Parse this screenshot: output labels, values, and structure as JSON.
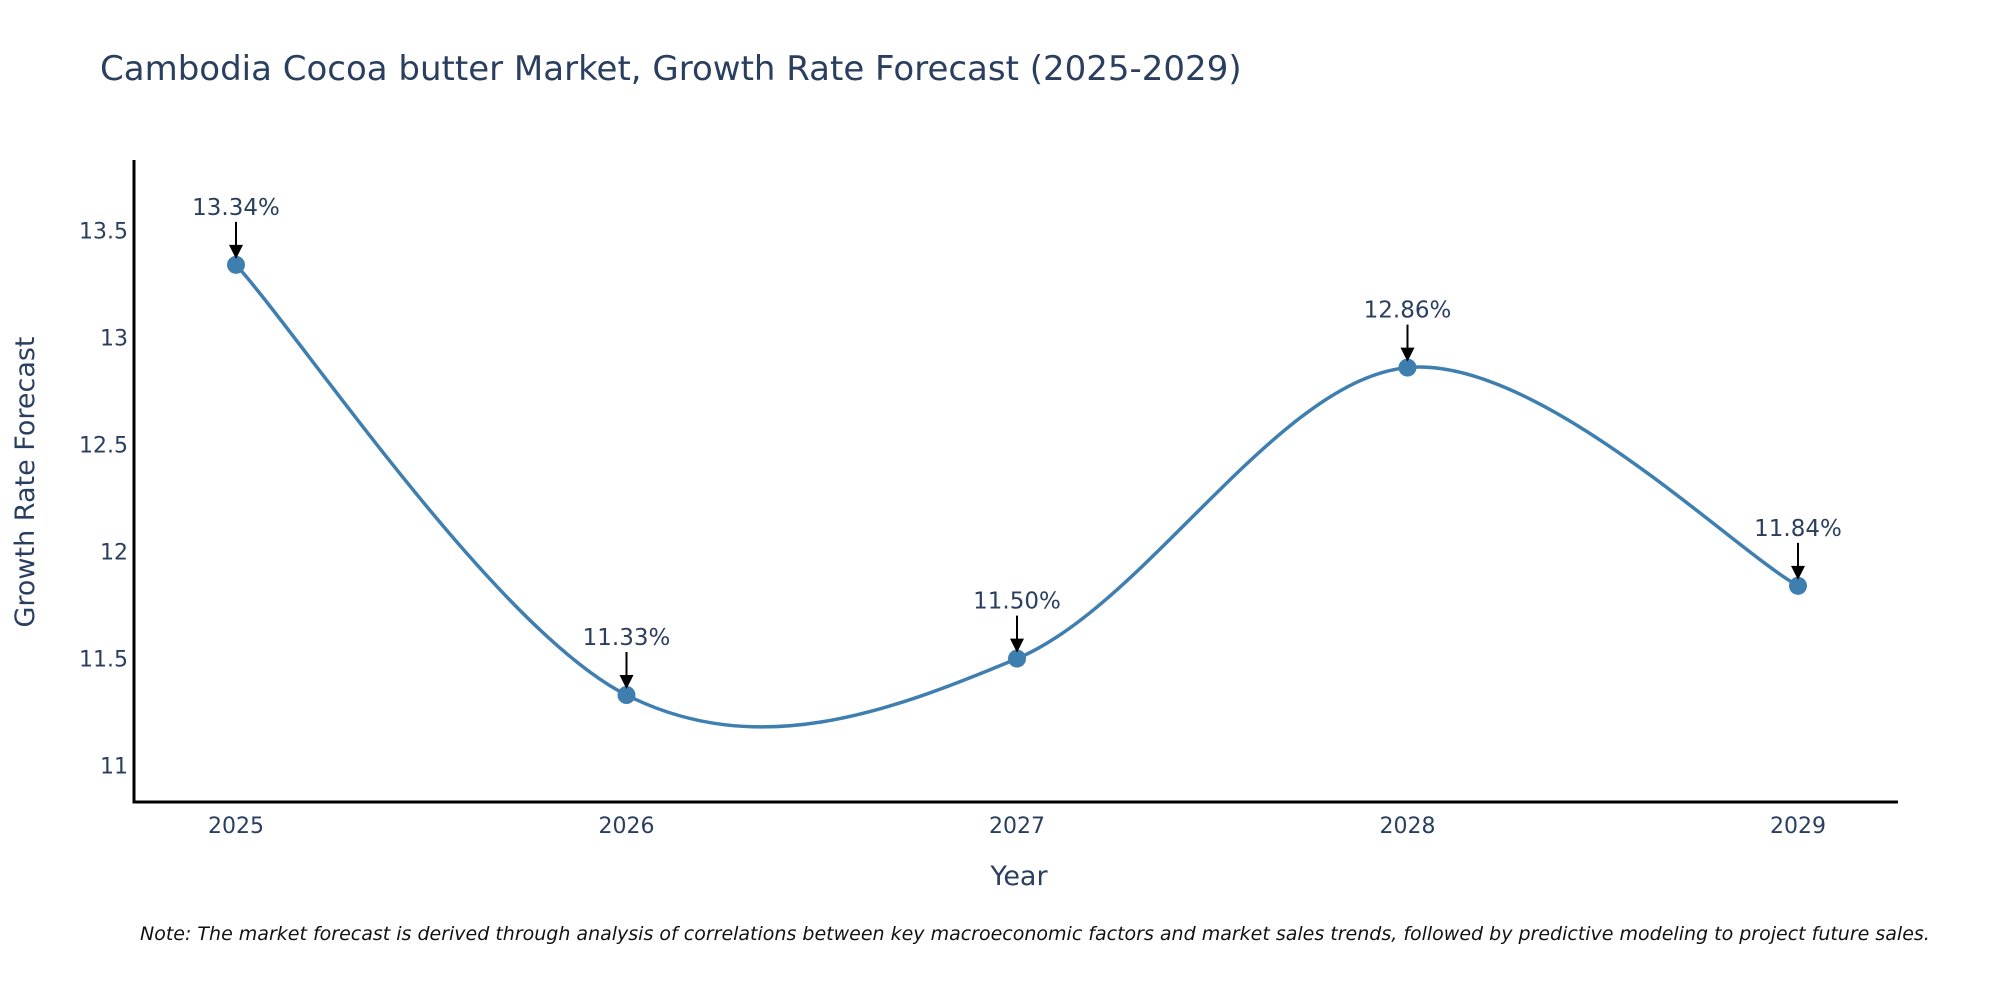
{
  "chart_data": {
    "type": "line",
    "title": "Cambodia Cocoa butter Market, Growth Rate Forecast (2025-2029)",
    "xlabel": "Year",
    "ylabel": "Growth Rate Forecast",
    "categories": [
      "2025",
      "2026",
      "2027",
      "2028",
      "2029"
    ],
    "values": [
      13.34,
      11.33,
      11.5,
      12.86,
      11.84
    ],
    "data_labels": [
      "13.34%",
      "11.33%",
      "11.50%",
      "12.86%",
      "11.84%"
    ],
    "yticks": [
      11,
      11.5,
      12,
      12.5,
      13,
      13.5
    ],
    "ytick_labels": [
      "11",
      "11.5",
      "12",
      "12.5",
      "13",
      "13.5"
    ],
    "ylim": [
      10.83,
      13.83
    ],
    "line_shape": "spline",
    "grid": false,
    "series_color": "#3f7fb0",
    "note": "Note: The market forecast is derived through analysis of correlations between key macroeconomic factors and market sales trends, followed by predictive modeling to project future sales."
  }
}
